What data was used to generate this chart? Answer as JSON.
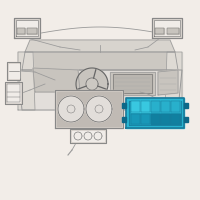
{
  "bg_color": "#f2ede8",
  "line_color": "#999999",
  "dark_line": "#666666",
  "mid_line": "#aaaaaa",
  "highlight_color": "#2ab8d4",
  "highlight_border": "#1a7a9a",
  "highlight_inner": "#1a9ab8",
  "component_fill": "#d4cec8",
  "component_fill2": "#c8c2bc",
  "component_border": "#888888",
  "white_fill": "#f0ece8",
  "dash_fill": "#dedad4",
  "dash_fill2": "#ccc8c2",
  "dash_fill3": "#e2deda",
  "cluster_fill": "#c8c4be"
}
